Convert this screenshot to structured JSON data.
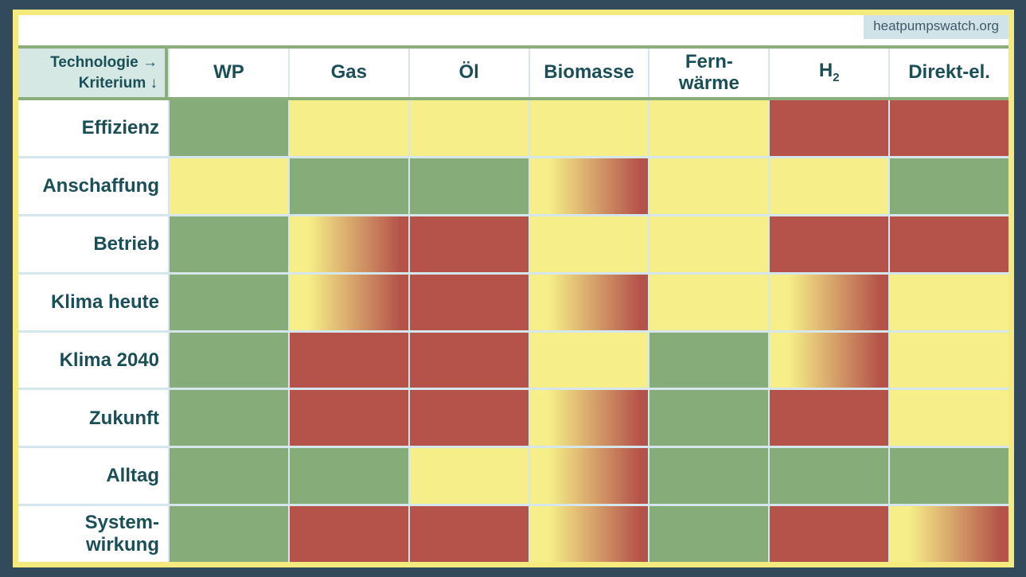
{
  "page": {
    "watermark": "heatpumpswatch.org"
  },
  "colors": {
    "page-bg": "#33495c",
    "frame": "#f5ea7d",
    "grid": "#d5e6ec",
    "accent": "#8aae7c",
    "good": "#86ad79",
    "mid": "#f6ee88",
    "bad": "#b5534b",
    "corner-bg": "#d5e8e4",
    "badge-bg": "#cfe3e9",
    "badge-text": "#41596b",
    "text": "#1b4f58"
  },
  "table": {
    "corner": {
      "line1": "Technologie →",
      "line2": "Kriterium ↓"
    },
    "columns": [
      {
        "label": "WP"
      },
      {
        "label": "Gas"
      },
      {
        "label": "Öl"
      },
      {
        "label": "Biomasse"
      },
      {
        "label": "Fern-",
        "label2": "wärme"
      },
      {
        "label": "H",
        "sub": "2"
      },
      {
        "label": "Direkt-el."
      }
    ],
    "rows": [
      {
        "label": "Effizienz",
        "cells": [
          "good",
          "mid",
          "mid",
          "mid",
          "mid",
          "bad",
          "bad"
        ]
      },
      {
        "label": "Anschaffung",
        "cells": [
          "mid",
          "good",
          "good",
          "mixed",
          "mid",
          "mid",
          "good"
        ]
      },
      {
        "label": "Betrieb",
        "cells": [
          "good",
          "mixed",
          "bad",
          "mid",
          "mid",
          "bad",
          "bad"
        ]
      },
      {
        "label": "Klima heute",
        "cells": [
          "good",
          "mixed",
          "bad",
          "mixed",
          "mid",
          "mixed",
          "mid"
        ]
      },
      {
        "label": "Klima 2040",
        "cells": [
          "good",
          "bad",
          "bad",
          "mid",
          "good",
          "mixed",
          "mid"
        ]
      },
      {
        "label": "Zukunft",
        "cells": [
          "good",
          "bad",
          "bad",
          "mixed",
          "good",
          "bad",
          "mid"
        ]
      },
      {
        "label": "Alltag",
        "cells": [
          "good",
          "good",
          "mid",
          "mixed",
          "good",
          "good",
          "good"
        ]
      },
      {
        "label": "System-",
        "label2": "wirkung",
        "cells": [
          "good",
          "bad",
          "bad",
          "mixed",
          "good",
          "bad",
          "mixed"
        ]
      }
    ]
  },
  "chart_data": {
    "type": "heatmap",
    "title": "",
    "x_categories": [
      "WP",
      "Gas",
      "Öl",
      "Biomasse",
      "Fernwärme",
      "H2",
      "Direkt-el."
    ],
    "y_categories": [
      "Effizienz",
      "Anschaffung",
      "Betrieb",
      "Klima heute",
      "Klima 2040",
      "Zukunft",
      "Alltag",
      "Systemwirkung"
    ],
    "corner_label": "Technologie → / Kriterium ↓",
    "values": [
      [
        "good",
        "mid",
        "mid",
        "mid",
        "mid",
        "bad",
        "bad"
      ],
      [
        "mid",
        "good",
        "good",
        "mixed",
        "mid",
        "mid",
        "good"
      ],
      [
        "good",
        "mixed",
        "bad",
        "mid",
        "mid",
        "bad",
        "bad"
      ],
      [
        "good",
        "mixed",
        "bad",
        "mixed",
        "mid",
        "mixed",
        "mid"
      ],
      [
        "good",
        "bad",
        "bad",
        "mid",
        "good",
        "mixed",
        "mid"
      ],
      [
        "good",
        "bad",
        "bad",
        "mixed",
        "good",
        "bad",
        "mid"
      ],
      [
        "good",
        "good",
        "mid",
        "mixed",
        "good",
        "good",
        "good"
      ],
      [
        "good",
        "bad",
        "bad",
        "mixed",
        "good",
        "bad",
        "mixed"
      ]
    ],
    "value_colors": {
      "good": "#86ad79",
      "mid": "#f6ee88",
      "bad": "#b5534b",
      "mixed": "linear-gradient yellow #f6ee88 to red #b5534b"
    },
    "legend_position": "none",
    "grid": true,
    "annotation": "heatpumpswatch.org"
  }
}
